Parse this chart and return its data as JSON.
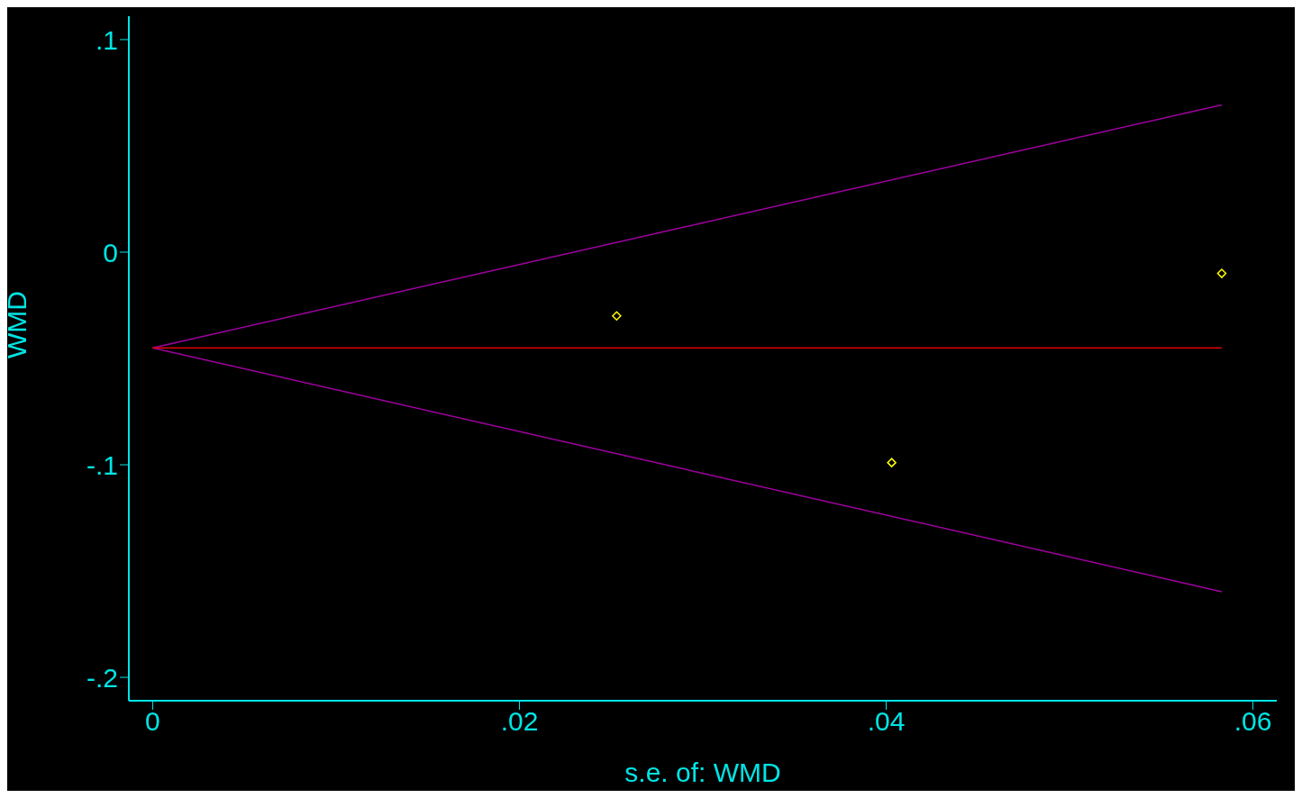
{
  "chart_data": {
    "type": "scatter",
    "xlabel": "s.e. of: WMD",
    "ylabel": "WMD",
    "xlim": [
      -0.0013,
      0.0613
    ],
    "ylim": [
      -0.211,
      0.111
    ],
    "xticks": [
      0,
      {
        "value": 0.02,
        "label": ".02"
      },
      {
        "value": 0.04,
        "label": ".04"
      },
      {
        "value": 0.06,
        "label": ".06"
      }
    ],
    "yticks": [
      {
        "value": 0.1,
        "label": ".1"
      },
      0,
      {
        "value": -0.1,
        "label": "-.1"
      },
      {
        "value": -0.2,
        "label": "-.2"
      }
    ],
    "series": [
      {
        "type": "line",
        "color": "#a000a0",
        "x": [
          0,
          0.0583
        ],
        "values": [
          -0.045,
          0.0693
        ]
      },
      {
        "type": "line",
        "color": "#a000a0",
        "x": [
          0,
          0.0583
        ],
        "values": [
          -0.045,
          -0.1597
        ]
      },
      {
        "type": "line",
        "color": "#e00000",
        "x": [
          0,
          0.0583
        ],
        "values": [
          -0.045,
          -0.045
        ]
      },
      {
        "color": "#ffff00",
        "marker": "diamond",
        "x": [
          0.0253,
          0.0403,
          0.0583
        ],
        "values": [
          -0.03,
          -0.099,
          -0.01
        ]
      }
    ]
  }
}
